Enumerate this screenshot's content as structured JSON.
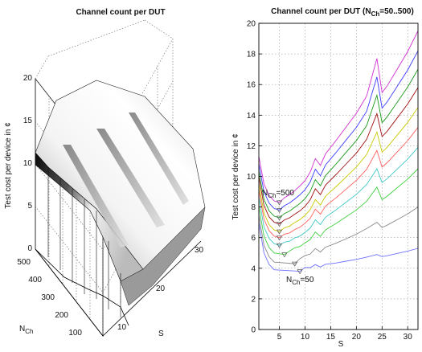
{
  "chart_data": [
    {
      "type": "surface",
      "title": "Channel count per DUT",
      "zlabel": "Test cost per device in ¢",
      "ylabel": "N",
      "ylabel_sub": "Ch",
      "xlabel": "S",
      "zlim": [
        0,
        20
      ],
      "z_ticks": [
        "0",
        "5",
        "10",
        "15",
        "20"
      ],
      "n_ticks": [
        "100",
        "200",
        "300",
        "400",
        "500"
      ],
      "s_ticks": [
        "10",
        "20",
        "30"
      ],
      "grid": true
    },
    {
      "type": "line",
      "title_main": "Channel count per DUT (N",
      "title_sub": "Ch",
      "title_tail": "=50..500)",
      "xlabel": "S",
      "ylabel": "Test cost per device in ¢",
      "xlim": [
        1,
        32
      ],
      "ylim": [
        0,
        20
      ],
      "x_ticks": [
        5,
        10,
        15,
        20,
        25,
        30
      ],
      "y_ticks": [
        0,
        2,
        4,
        6,
        8,
        10,
        12,
        14,
        16,
        18,
        20
      ],
      "grid": true,
      "annotations": {
        "top_label_main": "N",
        "top_label_sub": "Ch",
        "top_label_tail": "=500",
        "bottom_label_main": "N",
        "bottom_label_sub": "Ch",
        "bottom_label_tail": "=50"
      },
      "series": [
        {
          "color": "#d02fd0",
          "min_x": 5.0,
          "min_y": 8.3,
          "end_y": 19.5,
          "peak_y": 17.7
        },
        {
          "color": "#3c3cff",
          "min_x": 5.0,
          "min_y": 7.8,
          "end_y": 18.2,
          "peak_y": 16.5
        },
        {
          "color": "#1a9a1a",
          "min_x": 5.0,
          "min_y": 7.3,
          "end_y": 17.0,
          "peak_y": 15.3
        },
        {
          "color": "#a01010",
          "min_x": 5.0,
          "min_y": 6.9,
          "end_y": 15.8,
          "peak_y": 14.1
        },
        {
          "color": "#c9c900",
          "min_x": 5.0,
          "min_y": 6.4,
          "end_y": 14.5,
          "peak_y": 12.9
        },
        {
          "color": "#ff6060",
          "min_x": 5.0,
          "min_y": 6.0,
          "end_y": 13.2,
          "peak_y": 11.7
        },
        {
          "color": "#40c8c8",
          "min_x": 5.0,
          "min_y": 5.5,
          "end_y": 11.9,
          "peak_y": 10.5
        },
        {
          "color": "#40d040",
          "min_x": 6.0,
          "min_y": 4.9,
          "end_y": 10.5,
          "peak_y": 9.3
        },
        {
          "color": "#8a8a8a",
          "min_x": 8.0,
          "min_y": 4.3,
          "end_y": 8.0,
          "peak_y": 7.0
        },
        {
          "color": "#7070ff",
          "min_x": 9.0,
          "min_y": 3.8,
          "end_y": 5.3,
          "peak_y": 4.9
        }
      ]
    }
  ]
}
